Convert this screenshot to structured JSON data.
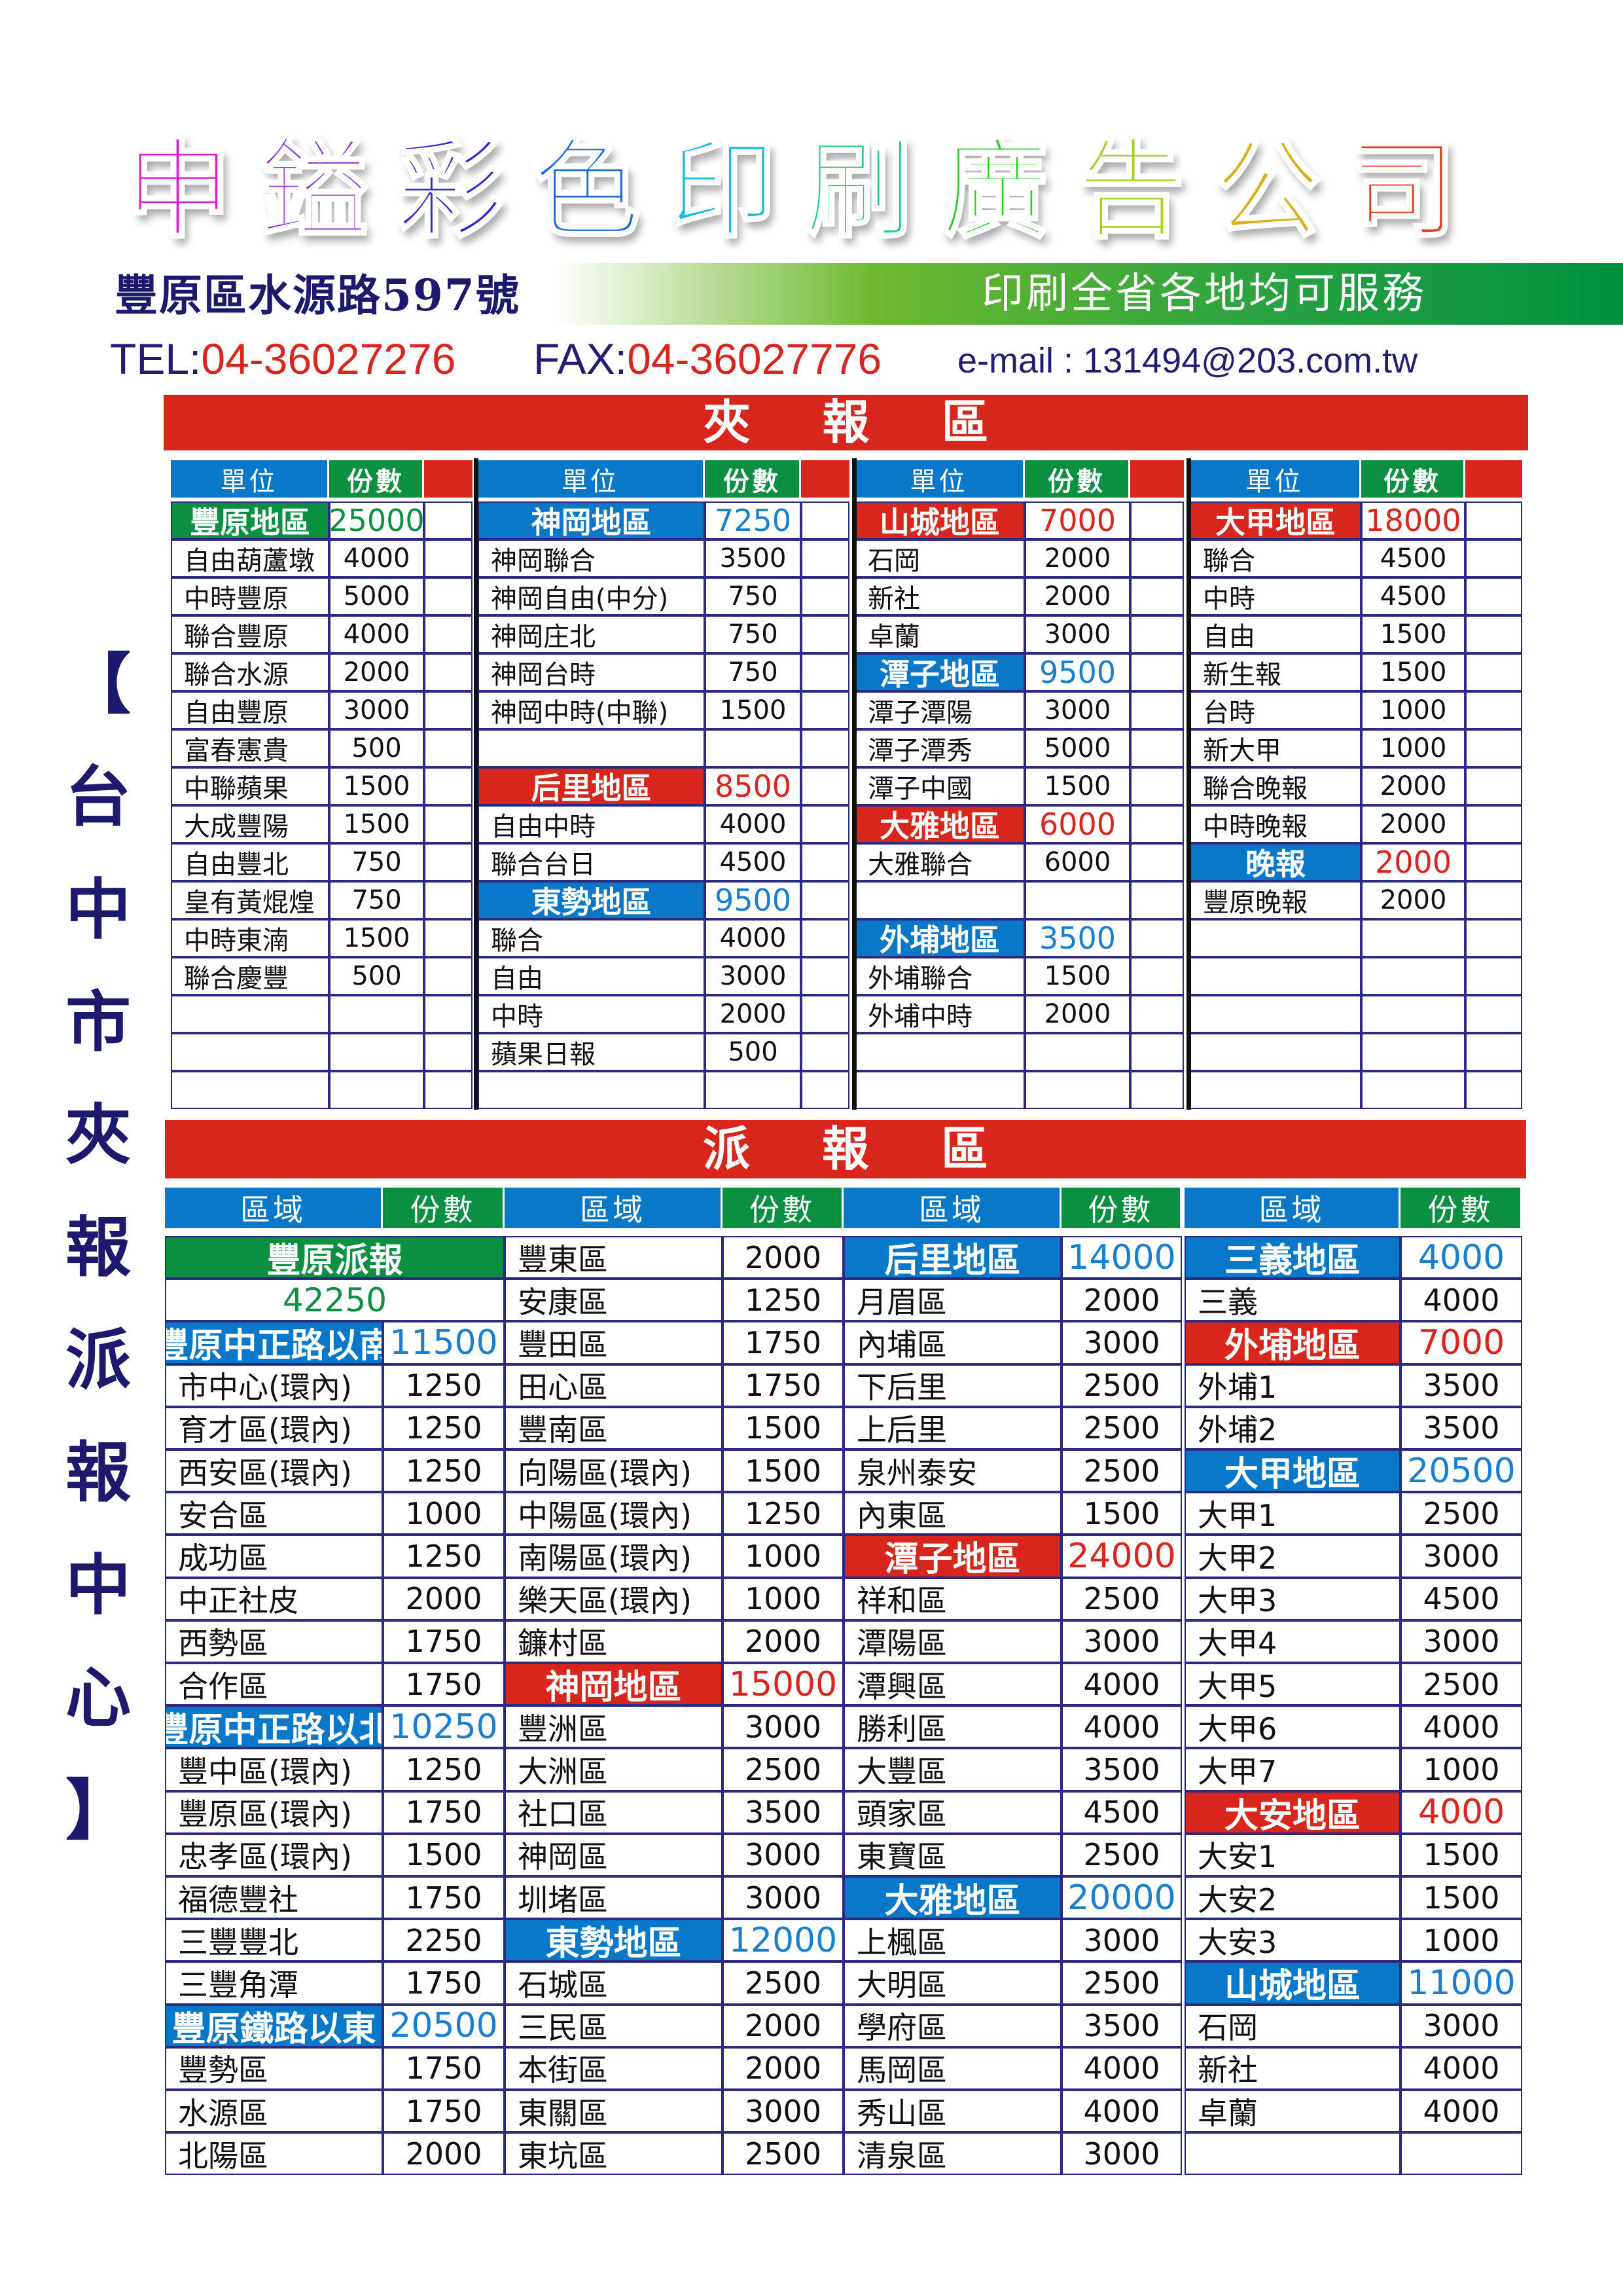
{
  "company": {
    "title_chars": [
      "申",
      "鎰",
      "彩",
      "色",
      "印",
      "刷",
      "廣",
      "告",
      "公",
      "司"
    ],
    "title_colors": [
      "#e01ec8",
      "#8a28e0",
      "#2a26d6",
      "#1e6ad8",
      "#16bcd8",
      "#14d27c",
      "#22d01e",
      "#9fd21e",
      "#d9b01e",
      "#e0401e"
    ],
    "address": "豐原區水源路597號",
    "slogan": "印刷全省各地均可服務",
    "tel_label": "TEL:",
    "tel": "04-36027276",
    "fax_label": "FAX:",
    "fax": "04-36027776",
    "email": "e-mail : 131494@203.com.tw"
  },
  "side_label": [
    "【",
    "台",
    "中",
    "市",
    "夾",
    "報",
    "派",
    "報",
    "中",
    "心",
    "】"
  ],
  "colors": {
    "blue": "#0a78c8",
    "green": "#0a9040",
    "red": "#d9261d",
    "line": "#2a2a80",
    "navy": "#1d1a6e"
  },
  "insert_section": {
    "title": "夾報區",
    "headers": {
      "unit": "單位",
      "count": "份數"
    },
    "tables": [
      {
        "rows": [
          {
            "name": "豐原地區",
            "count": "25000",
            "style": "green"
          },
          {
            "name": "自由葫蘆墩",
            "count": "4000"
          },
          {
            "name": "中時豐原",
            "count": "5000"
          },
          {
            "name": "聯合豐原",
            "count": "4000"
          },
          {
            "name": "聯合水源",
            "count": "2000"
          },
          {
            "name": "自由豐原",
            "count": "3000"
          },
          {
            "name": "富春憲貴",
            "count": "500"
          },
          {
            "name": "中聯蘋果",
            "count": "1500"
          },
          {
            "name": "大成豐陽",
            "count": "1500"
          },
          {
            "name": "自由豐北",
            "count": "750"
          },
          {
            "name": "皇有黃焜煌",
            "count": "750"
          },
          {
            "name": "中時東湳",
            "count": "1500"
          },
          {
            "name": "聯合慶豐",
            "count": "500"
          },
          {
            "name": "",
            "count": ""
          },
          {
            "name": "",
            "count": ""
          },
          {
            "name": "",
            "count": ""
          }
        ]
      },
      {
        "rows": [
          {
            "name": "神岡地區",
            "count": "7250",
            "style": "blue"
          },
          {
            "name": "神岡聯合",
            "count": "3500"
          },
          {
            "name": "神岡自由(中分)",
            "count": "750"
          },
          {
            "name": "神岡庄北",
            "count": "750"
          },
          {
            "name": "神岡台時",
            "count": "750"
          },
          {
            "name": "神岡中時(中聯)",
            "count": "1500"
          },
          {
            "name": "",
            "count": ""
          },
          {
            "name": "后里地區",
            "count": "8500",
            "style": "red"
          },
          {
            "name": "自由中時",
            "count": "4000"
          },
          {
            "name": "聯合台日",
            "count": "4500"
          },
          {
            "name": "東勢地區",
            "count": "9500",
            "style": "blue"
          },
          {
            "name": "聯合",
            "count": "4000"
          },
          {
            "name": "自由",
            "count": "3000"
          },
          {
            "name": "中時",
            "count": "2000"
          },
          {
            "name": "蘋果日報",
            "count": "500"
          },
          {
            "name": "",
            "count": ""
          }
        ]
      },
      {
        "rows": [
          {
            "name": "山城地區",
            "count": "7000",
            "style": "red"
          },
          {
            "name": "石岡",
            "count": "2000"
          },
          {
            "name": "新社",
            "count": "2000"
          },
          {
            "name": "卓蘭",
            "count": "3000"
          },
          {
            "name": "潭子地區",
            "count": "9500",
            "style": "blue"
          },
          {
            "name": "潭子潭陽",
            "count": "3000"
          },
          {
            "name": "潭子潭秀",
            "count": "5000"
          },
          {
            "name": "潭子中國",
            "count": "1500"
          },
          {
            "name": "大雅地區",
            "count": "6000",
            "style": "red"
          },
          {
            "name": "大雅聯合",
            "count": "6000"
          },
          {
            "name": "",
            "count": ""
          },
          {
            "name": "外埔地區",
            "count": "3500",
            "style": "blue"
          },
          {
            "name": "外埔聯合",
            "count": "1500"
          },
          {
            "name": "外埔中時",
            "count": "2000"
          },
          {
            "name": "",
            "count": ""
          },
          {
            "name": "",
            "count": ""
          }
        ]
      },
      {
        "rows": [
          {
            "name": "大甲地區",
            "count": "18000",
            "style": "red"
          },
          {
            "name": "聯合",
            "count": "4500"
          },
          {
            "name": "中時",
            "count": "4500"
          },
          {
            "name": "自由",
            "count": "1500"
          },
          {
            "name": "新生報",
            "count": "1500"
          },
          {
            "name": "台時",
            "count": "1000"
          },
          {
            "name": "新大甲",
            "count": "1000"
          },
          {
            "name": "聯合晚報",
            "count": "2000"
          },
          {
            "name": "中時晚報",
            "count": "2000"
          },
          {
            "name": "晚報",
            "count": "2000",
            "style": "blue-red"
          },
          {
            "name": "豐原晚報",
            "count": "2000"
          },
          {
            "name": "",
            "count": ""
          },
          {
            "name": "",
            "count": ""
          },
          {
            "name": "",
            "count": ""
          },
          {
            "name": "",
            "count": ""
          },
          {
            "name": "",
            "count": ""
          }
        ]
      }
    ]
  },
  "delivery_section": {
    "title": "派報區",
    "headers": {
      "area": "區域",
      "count": "份數"
    },
    "tables": [
      {
        "rows": [
          {
            "name": "豐原派報",
            "count": "",
            "style": "green-span"
          },
          {
            "name": "42250",
            "count": "",
            "style": "total-span"
          },
          {
            "name": "豐原中正路以南",
            "count": "11500",
            "style": "blue"
          },
          {
            "name": "市中心(環內)",
            "count": "1250"
          },
          {
            "name": "育才區(環內)",
            "count": "1250"
          },
          {
            "name": "西安區(環內)",
            "count": "1250"
          },
          {
            "name": "安合區",
            "count": "1000"
          },
          {
            "name": "成功區",
            "count": "1250"
          },
          {
            "name": "中正社皮",
            "count": "2000"
          },
          {
            "name": "西勢區",
            "count": "1750"
          },
          {
            "name": "合作區",
            "count": "1750"
          },
          {
            "name": "豐原中正路以北",
            "count": "10250",
            "style": "blue"
          },
          {
            "name": "豐中區(環內)",
            "count": "1250"
          },
          {
            "name": "豐原區(環內)",
            "count": "1750"
          },
          {
            "name": "忠孝區(環內)",
            "count": "1500"
          },
          {
            "name": "福德豐社",
            "count": "1750"
          },
          {
            "name": "三豐豐北",
            "count": "2250"
          },
          {
            "name": "三豐角潭",
            "count": "1750"
          },
          {
            "name": "豐原鐵路以東",
            "count": "20500",
            "style": "blue"
          },
          {
            "name": "豐勢區",
            "count": "1750"
          },
          {
            "name": "水源區",
            "count": "1750"
          },
          {
            "name": "北陽區",
            "count": "2000"
          }
        ]
      },
      {
        "rows": [
          {
            "name": "豐東區",
            "count": "2000"
          },
          {
            "name": "安康區",
            "count": "1250"
          },
          {
            "name": "豐田區",
            "count": "1750"
          },
          {
            "name": "田心區",
            "count": "1750"
          },
          {
            "name": "豐南區",
            "count": "1500"
          },
          {
            "name": "向陽區(環內)",
            "count": "1500"
          },
          {
            "name": "中陽區(環內)",
            "count": "1250"
          },
          {
            "name": "南陽區(環內)",
            "count": "1000"
          },
          {
            "name": "樂天區(環內)",
            "count": "1000"
          },
          {
            "name": "鐮村區",
            "count": "2000"
          },
          {
            "name": "神岡地區",
            "count": "15000",
            "style": "red"
          },
          {
            "name": "豐洲區",
            "count": "3000"
          },
          {
            "name": "大洲區",
            "count": "2500"
          },
          {
            "name": "社口區",
            "count": "3500"
          },
          {
            "name": "神岡區",
            "count": "3000"
          },
          {
            "name": "圳堵區",
            "count": "3000"
          },
          {
            "name": "東勢地區",
            "count": "12000",
            "style": "blue"
          },
          {
            "name": "石城區",
            "count": "2500"
          },
          {
            "name": "三民區",
            "count": "2000"
          },
          {
            "name": "本街區",
            "count": "2000"
          },
          {
            "name": "東關區",
            "count": "3000"
          },
          {
            "name": "東坑區",
            "count": "2500"
          }
        ]
      },
      {
        "rows": [
          {
            "name": "后里地區",
            "count": "14000",
            "style": "blue"
          },
          {
            "name": "月眉區",
            "count": "2000"
          },
          {
            "name": "內埔區",
            "count": "3000"
          },
          {
            "name": "下后里",
            "count": "2500"
          },
          {
            "name": "上后里",
            "count": "2500"
          },
          {
            "name": "泉州泰安",
            "count": "2500"
          },
          {
            "name": "內東區",
            "count": "1500"
          },
          {
            "name": "潭子地區",
            "count": "24000",
            "style": "red"
          },
          {
            "name": "祥和區",
            "count": "2500"
          },
          {
            "name": "潭陽區",
            "count": "3000"
          },
          {
            "name": "潭興區",
            "count": "4000"
          },
          {
            "name": "勝利區",
            "count": "4000"
          },
          {
            "name": "大豐區",
            "count": "3500"
          },
          {
            "name": "頭家區",
            "count": "4500"
          },
          {
            "name": "東寶區",
            "count": "2500"
          },
          {
            "name": "大雅地區",
            "count": "20000",
            "style": "blue"
          },
          {
            "name": "上楓區",
            "count": "3000"
          },
          {
            "name": "大明區",
            "count": "2500"
          },
          {
            "name": "學府區",
            "count": "3500"
          },
          {
            "name": "馬岡區",
            "count": "4000"
          },
          {
            "name": "秀山區",
            "count": "4000"
          },
          {
            "name": "清泉區",
            "count": "3000"
          }
        ]
      },
      {
        "rows": [
          {
            "name": "三義地區",
            "count": "4000",
            "style": "blue"
          },
          {
            "name": "三義",
            "count": "4000"
          },
          {
            "name": "外埔地區",
            "count": "7000",
            "style": "red"
          },
          {
            "name": "外埔1",
            "count": "3500"
          },
          {
            "name": "外埔2",
            "count": "3500"
          },
          {
            "name": "大甲地區",
            "count": "20500",
            "style": "blue"
          },
          {
            "name": "大甲1",
            "count": "2500"
          },
          {
            "name": "大甲2",
            "count": "3000"
          },
          {
            "name": "大甲3",
            "count": "4500"
          },
          {
            "name": "大甲4",
            "count": "3000"
          },
          {
            "name": "大甲5",
            "count": "2500"
          },
          {
            "name": "大甲6",
            "count": "4000"
          },
          {
            "name": "大甲7",
            "count": "1000"
          },
          {
            "name": "大安地區",
            "count": "4000",
            "style": "red"
          },
          {
            "name": "大安1",
            "count": "1500"
          },
          {
            "name": "大安2",
            "count": "1500"
          },
          {
            "name": "大安3",
            "count": "1000"
          },
          {
            "name": "山城地區",
            "count": "11000",
            "style": "blue"
          },
          {
            "name": "石岡",
            "count": "3000"
          },
          {
            "name": "新社",
            "count": "4000"
          },
          {
            "name": "卓蘭",
            "count": "4000"
          },
          {
            "name": "",
            "count": ""
          }
        ]
      }
    ]
  }
}
